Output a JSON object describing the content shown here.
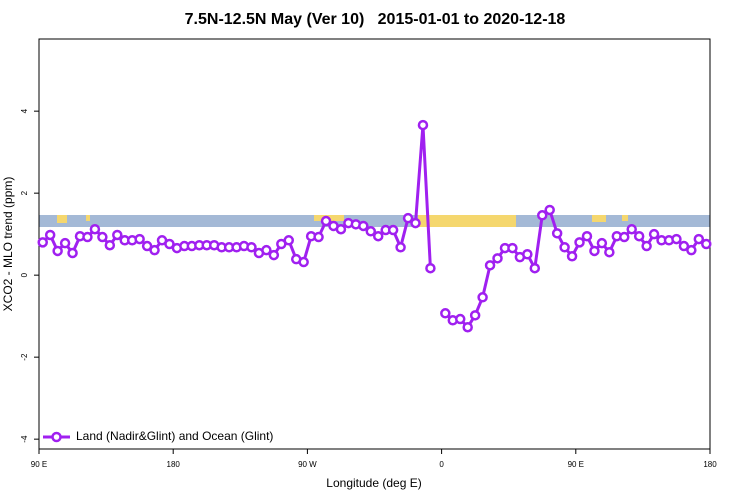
{
  "chart_data": {
    "type": "line",
    "title": "7.5N-12.5N May (Ver 10)   2015-01-01 to 2020-12-18",
    "x_label": "Longitude (deg E)",
    "y_label": "XCO2 - MLO trend (ppm)",
    "xlim": [
      -270,
      180
    ],
    "xticks": [
      {
        "value": -270,
        "label": "90 E"
      },
      {
        "value": -180,
        "label": "180"
      },
      {
        "value": -90,
        "label": "90 W"
      },
      0,
      {
        "value": 90,
        "label": "90 E"
      },
      180
    ],
    "ylim": [
      -4.24,
      5.76
    ],
    "yticks": [
      -4,
      -2,
      0,
      2,
      4
    ],
    "legend": "bottom-left",
    "x": [
      -267.5,
      -262.5,
      -257.5,
      -252.5,
      -247.5,
      -242.5,
      -237.5,
      -232.5,
      -227.5,
      -222.5,
      -217.5,
      -212.5,
      -207.5,
      -202.5,
      -197.5,
      -192.5,
      -187.5,
      -182.5,
      -177.5,
      -172.5,
      -167.5,
      -162.5,
      -157.5,
      -152.5,
      -147.5,
      -142.5,
      -137.5,
      -132.5,
      -127.5,
      -122.5,
      -117.5,
      -112.5,
      -107.5,
      -102.5,
      -97.5,
      -92.5,
      -87.5,
      -82.5,
      -77.5,
      -72.5,
      -67.5,
      -62.5,
      -57.5,
      -52.5,
      -47.5,
      -42.5,
      -37.5,
      -32.5,
      -27.5,
      -22.5,
      -17.5,
      -12.5,
      -7.5,
      -2.5,
      2.5,
      7.5,
      12.5,
      17.5,
      22.5,
      27.5,
      32.5,
      37.5,
      42.5,
      47.5,
      52.5,
      57.5,
      62.5,
      67.5,
      72.5,
      77.5,
      82.5,
      87.5,
      92.5,
      97.5,
      102.5,
      107.5,
      112.5,
      117.5,
      122.5,
      127.5,
      132.5,
      137.5,
      142.5,
      147.5,
      152.5,
      157.5,
      162.5,
      167.5,
      172.5,
      177.5
    ],
    "series": [
      {
        "name": "Land (Nadir&Glint) and Ocean (Glint)",
        "color": "#a020f0",
        "values": [
          0.8,
          0.98,
          0.59,
          0.78,
          0.54,
          0.95,
          0.93,
          1.12,
          0.93,
          0.73,
          0.98,
          0.85,
          0.85,
          0.88,
          0.71,
          0.61,
          0.85,
          0.76,
          0.66,
          0.71,
          0.71,
          0.73,
          0.73,
          0.73,
          0.68,
          0.68,
          0.68,
          0.71,
          0.68,
          0.54,
          0.61,
          0.49,
          0.76,
          0.85,
          0.39,
          0.32,
          0.95,
          0.93,
          1.32,
          1.2,
          1.12,
          1.27,
          1.24,
          1.2,
          1.07,
          0.95,
          1.1,
          1.1,
          0.68,
          1.39,
          1.27,
          3.66,
          0.17,
          null,
          -0.93,
          -1.1,
          -1.07,
          -1.27,
          -0.98,
          -0.54,
          0.24,
          0.41,
          0.66,
          0.66,
          0.44,
          0.51,
          0.17,
          1.46,
          1.59,
          1.02,
          0.68,
          0.46,
          0.8,
          0.95,
          0.59,
          0.78,
          0.56,
          0.95,
          0.93,
          1.12,
          0.95,
          0.71,
          1.0,
          0.85,
          0.85,
          0.88,
          0.71,
          0.61,
          0.88,
          0.76
        ]
      }
    ]
  }
}
